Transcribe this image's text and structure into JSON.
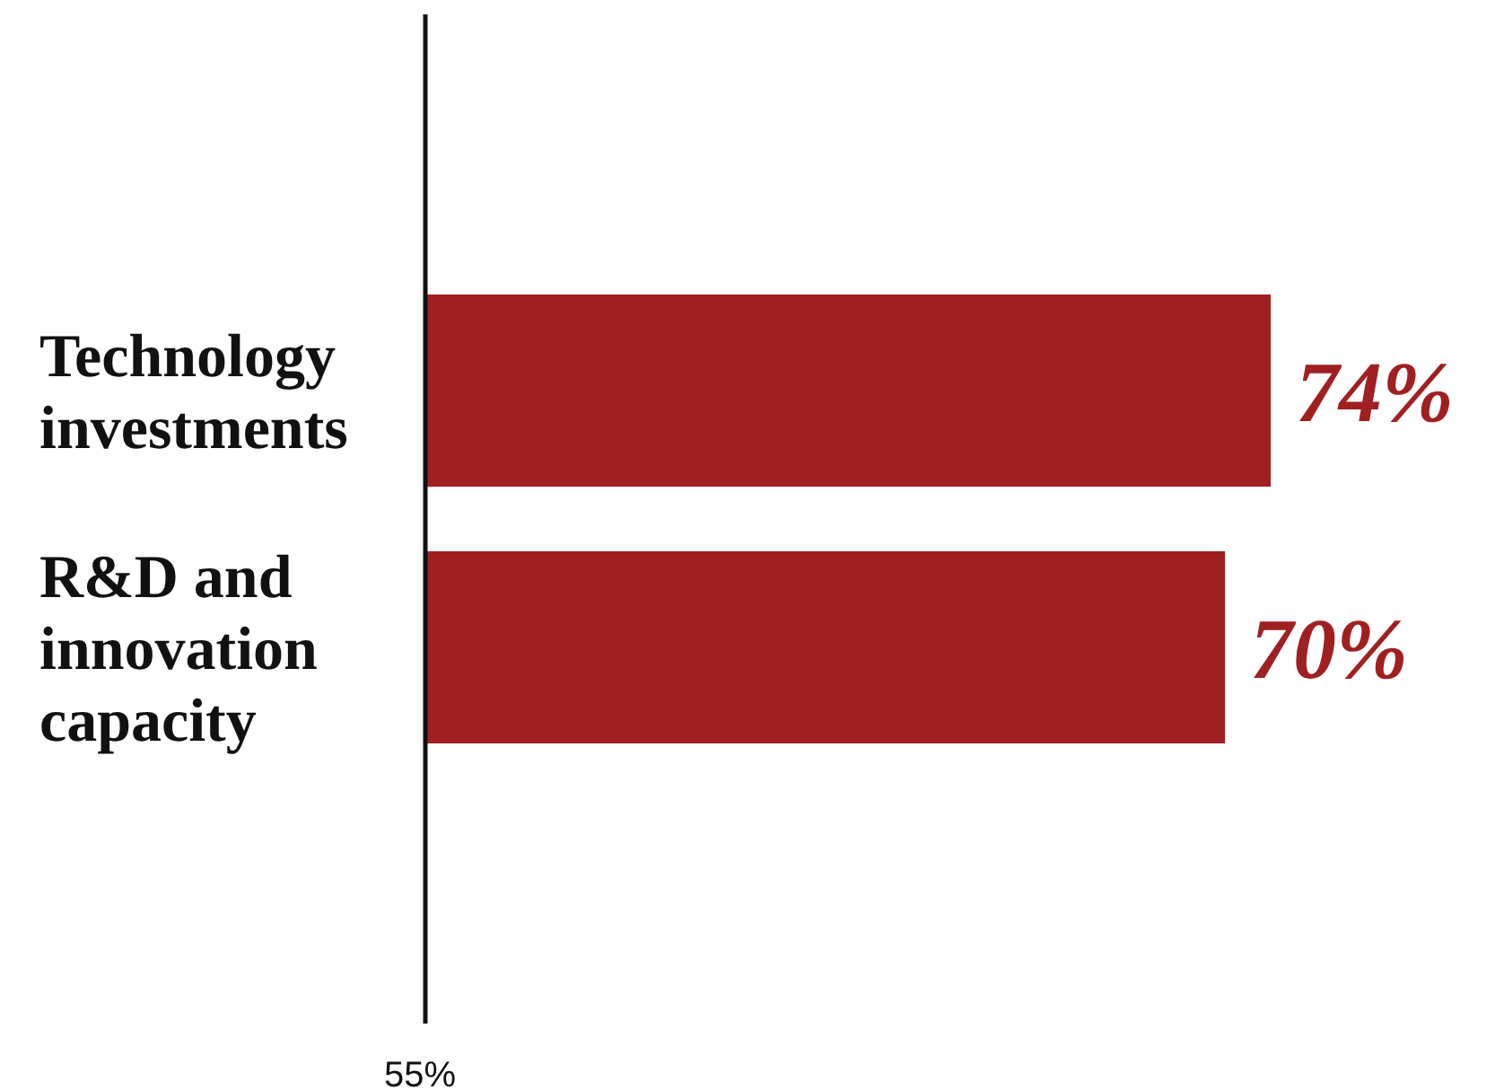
{
  "chart_data": {
    "type": "bar",
    "orientation": "horizontal",
    "categories": [
      "Technology investments",
      "R&D and innovation capacity"
    ],
    "values": [
      74,
      70
    ],
    "color": "#a02022",
    "value_labels": [
      "74%",
      "70%"
    ],
    "annotations": [
      "55%"
    ],
    "grid": false,
    "legend": false
  }
}
